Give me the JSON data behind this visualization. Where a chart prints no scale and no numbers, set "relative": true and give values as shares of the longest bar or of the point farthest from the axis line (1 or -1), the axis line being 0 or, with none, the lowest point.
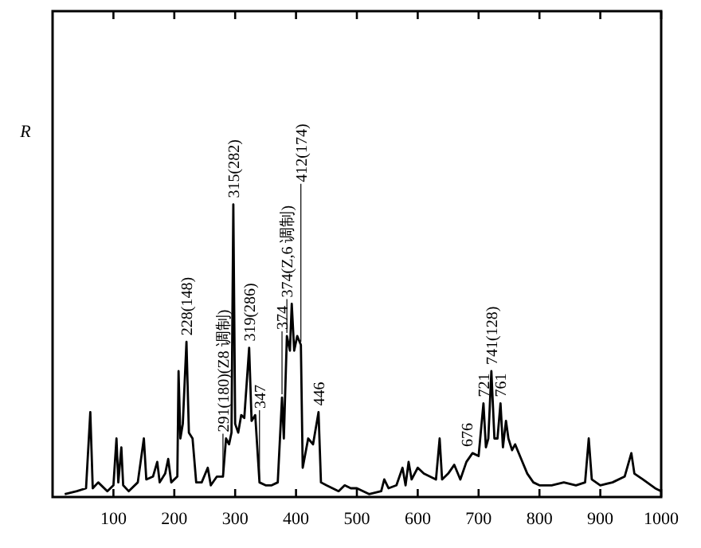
{
  "chart_data": {
    "type": "line",
    "ylabel": "R",
    "relative": true,
    "xlim": [
      0,
      1000
    ],
    "xticks": [
      100,
      200,
      300,
      400,
      500,
      600,
      700,
      800,
      900,
      1000
    ],
    "grid": false,
    "marker": "none",
    "line_style": "solid",
    "series": [
      {
        "color": "#000000",
        "x": [
          20,
          40,
          55,
          62,
          66,
          75,
          90,
          100,
          105,
          108,
          113,
          116,
          125,
          140,
          150,
          154,
          165,
          172,
          176,
          185,
          190,
          195,
          205,
          207,
          210,
          214,
          220,
          224,
          230,
          236,
          245,
          255,
          260,
          270,
          280,
          285,
          290,
          294,
          297,
          300,
          305,
          310,
          315,
          323,
          327,
          333,
          340,
          350,
          360,
          370,
          377,
          380,
          385,
          390,
          393,
          397,
          402,
          408,
          411,
          420,
          428,
          437,
          441,
          450,
          460,
          470,
          480,
          490,
          500,
          520,
          540,
          545,
          552,
          565,
          575,
          580,
          585,
          590,
          600,
          610,
          620,
          630,
          636,
          640,
          650,
          660,
          670,
          680,
          690,
          700,
          708,
          712,
          716,
          721,
          726,
          731,
          736,
          740,
          745,
          749,
          755,
          760,
          770,
          780,
          790,
          800,
          820,
          840,
          860,
          875,
          881,
          886,
          900,
          920,
          940,
          951,
          956,
          970,
          990,
          1000
        ],
        "values": [
          0.01,
          0.02,
          0.03,
          0.29,
          0.03,
          0.05,
          0.02,
          0.04,
          0.2,
          0.05,
          0.17,
          0.04,
          0.02,
          0.05,
          0.2,
          0.06,
          0.07,
          0.12,
          0.05,
          0.08,
          0.13,
          0.05,
          0.07,
          0.43,
          0.2,
          0.25,
          0.53,
          0.22,
          0.2,
          0.05,
          0.05,
          0.1,
          0.04,
          0.07,
          0.07,
          0.2,
          0.18,
          0.22,
          1.0,
          0.25,
          0.22,
          0.28,
          0.27,
          0.51,
          0.26,
          0.28,
          0.05,
          0.04,
          0.04,
          0.05,
          0.34,
          0.2,
          0.55,
          0.5,
          0.66,
          0.5,
          0.55,
          0.52,
          0.1,
          0.2,
          0.18,
          0.29,
          0.05,
          0.04,
          0.03,
          0.02,
          0.04,
          0.03,
          0.03,
          0.01,
          0.02,
          0.06,
          0.03,
          0.04,
          0.1,
          0.04,
          0.12,
          0.06,
          0.1,
          0.08,
          0.07,
          0.06,
          0.2,
          0.06,
          0.08,
          0.11,
          0.06,
          0.12,
          0.15,
          0.14,
          0.32,
          0.17,
          0.2,
          0.43,
          0.2,
          0.2,
          0.32,
          0.17,
          0.26,
          0.2,
          0.16,
          0.18,
          0.13,
          0.08,
          0.05,
          0.04,
          0.04,
          0.05,
          0.04,
          0.05,
          0.2,
          0.06,
          0.04,
          0.05,
          0.07,
          0.15,
          0.08,
          0.06,
          0.03,
          0.02
        ]
      }
    ],
    "annotations": [
      {
        "text": "228(148)",
        "x": 220,
        "y": 0.53
      },
      {
        "text": "291(180)(Z8 调制)",
        "x": 280,
        "y": 0.07
      },
      {
        "text": "315(282)",
        "x": 297,
        "y": 1.0
      },
      {
        "text": "319(286)",
        "x": 323,
        "y": 0.51
      },
      {
        "text": "347",
        "x": 340,
        "y": 0.05
      },
      {
        "text": "374",
        "x": 377,
        "y": 0.34
      },
      {
        "text": "374(Z,6 调制)",
        "x": 385,
        "y": 0.55
      },
      {
        "text": "412(174)",
        "x": 408,
        "y": 0.52
      },
      {
        "text": "446",
        "x": 437,
        "y": 0.29
      },
      {
        "text": "676",
        "x": 680,
        "y": 0.12
      },
      {
        "text": "721",
        "x": 708,
        "y": 0.32
      },
      {
        "text": "741(128)",
        "x": 721,
        "y": 0.43
      },
      {
        "text": "761",
        "x": 736,
        "y": 0.32
      }
    ]
  }
}
